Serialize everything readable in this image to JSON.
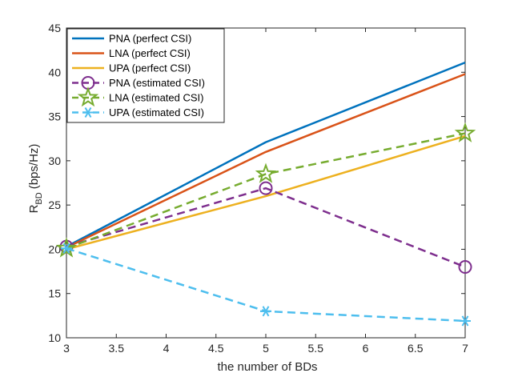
{
  "chart_data": {
    "type": "line",
    "xlabel": "the number of BDs",
    "ylabel_main": "R",
    "ylabel_sub": "BD",
    "ylabel_units": "(bps/Hz)",
    "xlim": [
      3,
      7
    ],
    "ylim": [
      10,
      45
    ],
    "xticks": [
      "3",
      "3.5",
      "4",
      "4.5",
      "5",
      "5.5",
      "6",
      "6.5",
      "7"
    ],
    "yticks": [
      "10",
      "15",
      "20",
      "25",
      "30",
      "35",
      "40",
      "45"
    ],
    "grid": false,
    "legend_position": "top-left",
    "x": [
      3,
      5,
      7
    ],
    "series": [
      {
        "name": "PNA (perfect CSI)",
        "values": [
          20.3,
          32.1,
          41.1
        ],
        "color": "#0072BD",
        "dash": "solid",
        "marker": "none"
      },
      {
        "name": "LNA (perfect CSI)",
        "values": [
          20.2,
          31.0,
          39.8
        ],
        "color": "#D95319",
        "dash": "solid",
        "marker": "none"
      },
      {
        "name": "UPA (perfect CSI)",
        "values": [
          20.0,
          26.0,
          32.8
        ],
        "color": "#EDB120",
        "dash": "solid",
        "marker": "none"
      },
      {
        "name": "PNA (estimated CSI)",
        "values": [
          20.3,
          26.9,
          18.0
        ],
        "color": "#7E2F8E",
        "dash": "dashed",
        "marker": "circle-icon"
      },
      {
        "name": "LNA (estimated CSI)",
        "values": [
          20.1,
          28.5,
          33.1
        ],
        "color": "#77AC30",
        "dash": "dashed",
        "marker": "star-icon"
      },
      {
        "name": "UPA (estimated CSI)",
        "values": [
          20.1,
          13.0,
          11.9
        ],
        "color": "#4DBEEE",
        "dash": "dashed",
        "marker": "asterisk-icon"
      }
    ]
  }
}
